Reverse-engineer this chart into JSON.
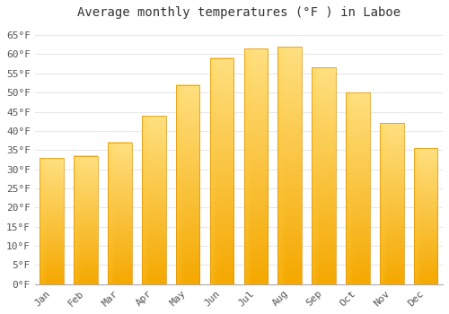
{
  "title": "Average monthly temperatures (°F ) in Laboe",
  "months": [
    "Jan",
    "Feb",
    "Mar",
    "Apr",
    "May",
    "Jun",
    "Jul",
    "Aug",
    "Sep",
    "Oct",
    "Nov",
    "Dec"
  ],
  "values": [
    33,
    33.5,
    37,
    44,
    52,
    59,
    61.5,
    62,
    56.5,
    50,
    42,
    35.5
  ],
  "bar_color_bottom": "#F5A800",
  "bar_color_top": "#FFE080",
  "bar_color_left_highlight": "#FFD040",
  "bar_edge_color": "#E09000",
  "ylim": [
    0,
    68
  ],
  "yticks": [
    0,
    5,
    10,
    15,
    20,
    25,
    30,
    35,
    40,
    45,
    50,
    55,
    60,
    65
  ],
  "ytick_labels": [
    "0°F",
    "5°F",
    "10°F",
    "15°F",
    "20°F",
    "25°F",
    "30°F",
    "35°F",
    "40°F",
    "45°F",
    "50°F",
    "55°F",
    "60°F",
    "65°F"
  ],
  "background_color": "#ffffff",
  "grid_color": "#e8e8e8",
  "title_fontsize": 10,
  "tick_fontsize": 8,
  "bar_width": 0.7
}
